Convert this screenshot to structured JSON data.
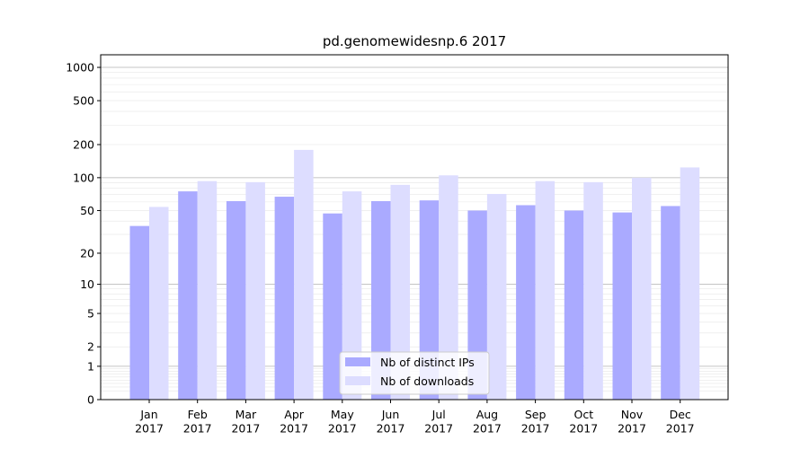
{
  "chart_data": {
    "type": "bar",
    "title": "pd.genomewidesnp.6 2017",
    "xlabel": "",
    "ylabel": "",
    "yscale": "log1p",
    "ylim": [
      0,
      1300
    ],
    "y_ticks": [
      0,
      1,
      2,
      5,
      10,
      20,
      50,
      100,
      200,
      500,
      1000
    ],
    "categories": [
      "Jan\n2017",
      "Feb\n2017",
      "Mar\n2017",
      "Apr\n2017",
      "May\n2017",
      "Jun\n2017",
      "Jul\n2017",
      "Aug\n2017",
      "Sep\n2017",
      "Oct\n2017",
      "Nov\n2017",
      "Dec\n2017"
    ],
    "series": [
      {
        "name": "Nb of distinct IPs",
        "color": "#aaaaff",
        "values": [
          36,
          75,
          61,
          67,
          47,
          61,
          62,
          50,
          56,
          50,
          48,
          55
        ]
      },
      {
        "name": "Nb of downloads",
        "color": "#ddddff",
        "values": [
          54,
          93,
          91,
          179,
          75,
          86,
          105,
          71,
          93,
          91,
          100,
          124
        ]
      }
    ],
    "grid": true,
    "legend_position": "bottom-center"
  }
}
